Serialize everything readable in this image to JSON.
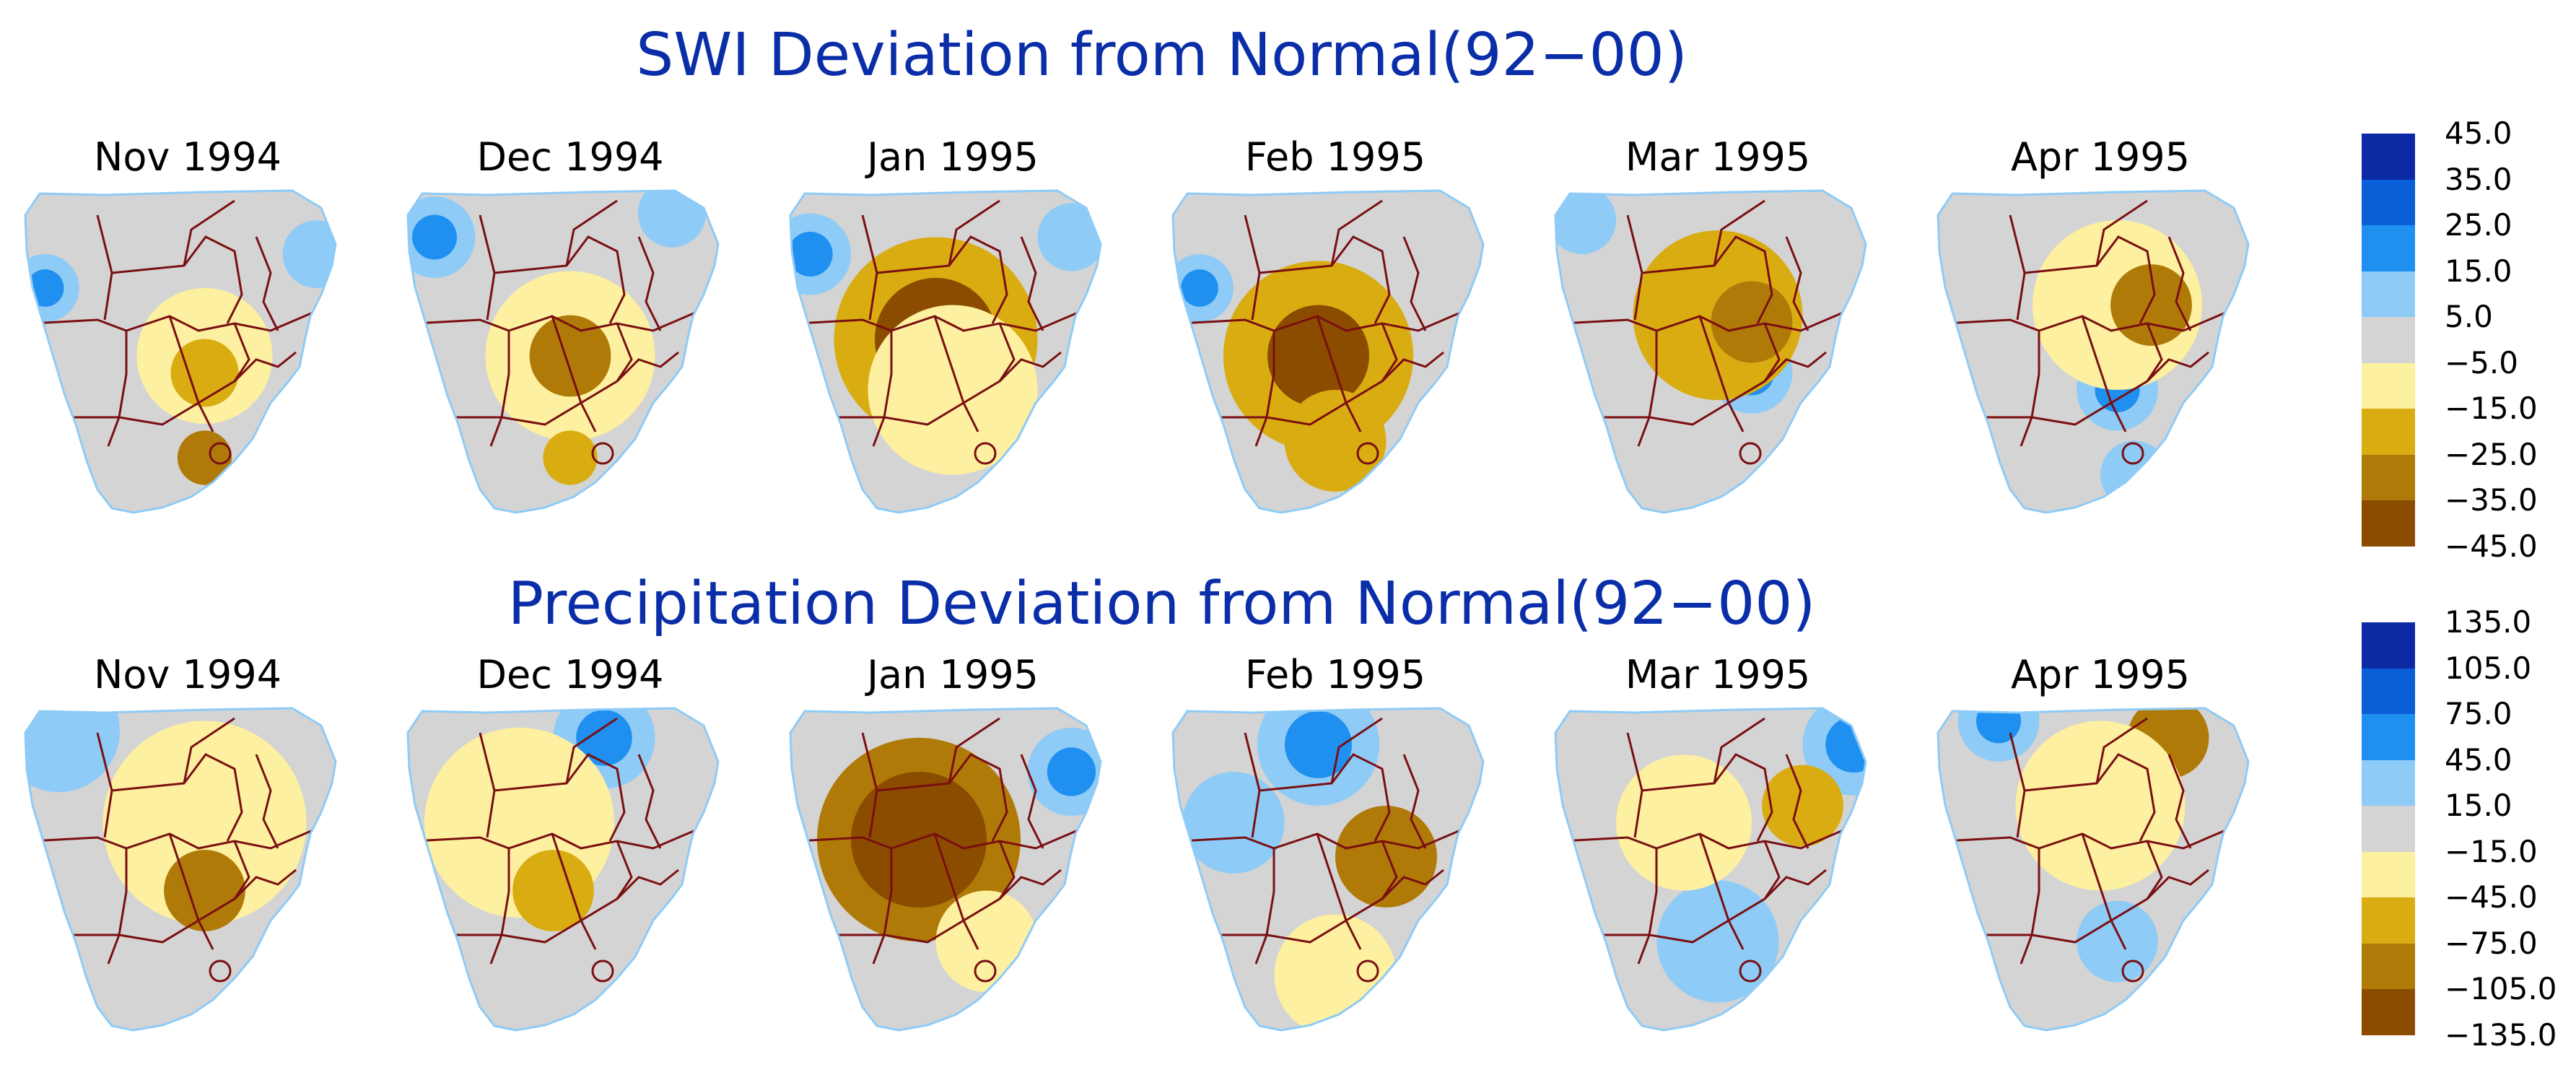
{
  "panels": [
    {
      "title": "SWI Deviation from Normal(92−00)",
      "months": [
        "Nov 1994",
        "Dec 1994",
        "Jan 1995",
        "Feb 1995",
        "Mar 1995",
        "Apr 1995"
      ],
      "legend": {
        "labels": [
          "45.0",
          "35.0",
          "25.0",
          "15.0",
          "5.0",
          "−5.0",
          "−15.0",
          "−25.0",
          "−35.0",
          "−45.0"
        ],
        "colors": [
          "#0d2aa5",
          "#0a5fd8",
          "#1f8ff0",
          "#8ecbf7",
          "#d4d4d4",
          "#fdf0a0",
          "#d9ac12",
          "#b07a08",
          "#8b4c00"
        ]
      },
      "maps": [
        {
          "month": "Nov 1994",
          "wet": [
            [
              0.08,
              0.3,
              0.1
            ],
            [
              0.88,
              0.2,
              0.1
            ]
          ],
          "dry": [
            [
              0.55,
              0.5,
              0.2,
              "#fdf0a0"
            ],
            [
              0.55,
              0.55,
              0.1,
              "#d9ac12"
            ],
            [
              0.55,
              0.8,
              0.08,
              "#b07a08"
            ]
          ]
        },
        {
          "month": "Dec 1994",
          "wet": [
            [
              0.1,
              0.15,
              0.12
            ],
            [
              0.8,
              0.08,
              0.1
            ]
          ],
          "dry": [
            [
              0.5,
              0.5,
              0.25,
              "#fdf0a0"
            ],
            [
              0.5,
              0.5,
              0.12,
              "#b07a08"
            ],
            [
              0.5,
              0.8,
              0.08,
              "#d9ac12"
            ]
          ]
        },
        {
          "month": "Jan 1995",
          "wet": [
            [
              0.08,
              0.2,
              0.12
            ],
            [
              0.85,
              0.15,
              0.1
            ]
          ],
          "dry": [
            [
              0.45,
              0.45,
              0.3,
              "#d9ac12"
            ],
            [
              0.45,
              0.45,
              0.18,
              "#8b4c00"
            ],
            [
              0.5,
              0.6,
              0.25,
              "#fdf0a0"
            ]
          ]
        },
        {
          "month": "Feb 1995",
          "wet": [
            [
              0.1,
              0.3,
              0.1
            ]
          ],
          "dry": [
            [
              0.45,
              0.5,
              0.28,
              "#d9ac12"
            ],
            [
              0.45,
              0.5,
              0.15,
              "#8b4c00"
            ],
            [
              0.5,
              0.75,
              0.15,
              "#d9ac12"
            ]
          ]
        },
        {
          "month": "Mar 1995",
          "wet": [
            [
              0.6,
              0.55,
              0.12
            ],
            [
              0.1,
              0.1,
              0.1
            ]
          ],
          "dry": [
            [
              0.5,
              0.38,
              0.25,
              "#d9ac12"
            ],
            [
              0.6,
              0.4,
              0.12,
              "#b07a08"
            ]
          ]
        },
        {
          "month": "Apr 1995",
          "wet": [
            [
              0.55,
              0.6,
              0.12
            ],
            [
              0.6,
              0.85,
              0.1
            ]
          ],
          "dry": [
            [
              0.55,
              0.35,
              0.25,
              "#fdf0a0"
            ],
            [
              0.65,
              0.35,
              0.12,
              "#b07a08"
            ]
          ]
        }
      ]
    },
    {
      "title": "Precipitation Deviation from Normal(92−00)",
      "months": [
        "Nov 1994",
        "Dec 1994",
        "Jan 1995",
        "Feb 1995",
        "Mar 1995",
        "Apr 1995"
      ],
      "legend": {
        "labels": [
          "135.0",
          "105.0",
          "75.0",
          "45.0",
          "15.0",
          "−15.0",
          "−45.0",
          "−75.0",
          "−105.0",
          "−135.0"
        ],
        "colors": [
          "#0d2aa5",
          "#0a5fd8",
          "#1f8ff0",
          "#8ecbf7",
          "#d4d4d4",
          "#fdf0a0",
          "#d9ac12",
          "#b07a08",
          "#8b4c00"
        ]
      },
      "maps": [
        {
          "month": "Nov 1994",
          "wet": [
            [
              0.12,
              0.08,
              0.18
            ],
            [
              0.12,
              0.08,
              0.1
            ]
          ],
          "dry": [
            [
              0.55,
              0.35,
              0.3,
              "#fdf0a0"
            ],
            [
              0.55,
              0.55,
              0.12,
              "#b07a08"
            ]
          ]
        },
        {
          "month": "Dec 1994",
          "wet": [
            [
              0.6,
              0.1,
              0.15
            ]
          ],
          "dry": [
            [
              0.35,
              0.35,
              0.28,
              "#fdf0a0"
            ],
            [
              0.45,
              0.55,
              0.12,
              "#d9ac12"
            ]
          ]
        },
        {
          "month": "Jan 1995",
          "wet": [
            [
              0.85,
              0.2,
              0.13
            ]
          ],
          "dry": [
            [
              0.4,
              0.4,
              0.3,
              "#b07a08"
            ],
            [
              0.4,
              0.4,
              0.2,
              "#8b4c00"
            ],
            [
              0.6,
              0.7,
              0.15,
              "#fdf0a0"
            ]
          ]
        },
        {
          "month": "Feb 1995",
          "wet": [
            [
              0.45,
              0.12,
              0.18
            ],
            [
              0.2,
              0.35,
              0.15
            ]
          ],
          "dry": [
            [
              0.65,
              0.45,
              0.15,
              "#b07a08"
            ],
            [
              0.5,
              0.8,
              0.18,
              "#fdf0a0"
            ]
          ]
        },
        {
          "month": "Mar 1995",
          "wet": [
            [
              0.9,
              0.12,
              0.15
            ],
            [
              0.5,
              0.7,
              0.18
            ]
          ],
          "dry": [
            [
              0.75,
              0.3,
              0.12,
              "#d9ac12"
            ],
            [
              0.4,
              0.35,
              0.2,
              "#fdf0a0"
            ]
          ]
        },
        {
          "month": "Apr 1995",
          "wet": [
            [
              0.2,
              0.05,
              0.12
            ],
            [
              0.55,
              0.7,
              0.12
            ]
          ],
          "dry": [
            [
              0.7,
              0.1,
              0.12,
              "#b07a08"
            ],
            [
              0.5,
              0.3,
              0.25,
              "#fdf0a0"
            ]
          ]
        }
      ]
    }
  ]
}
